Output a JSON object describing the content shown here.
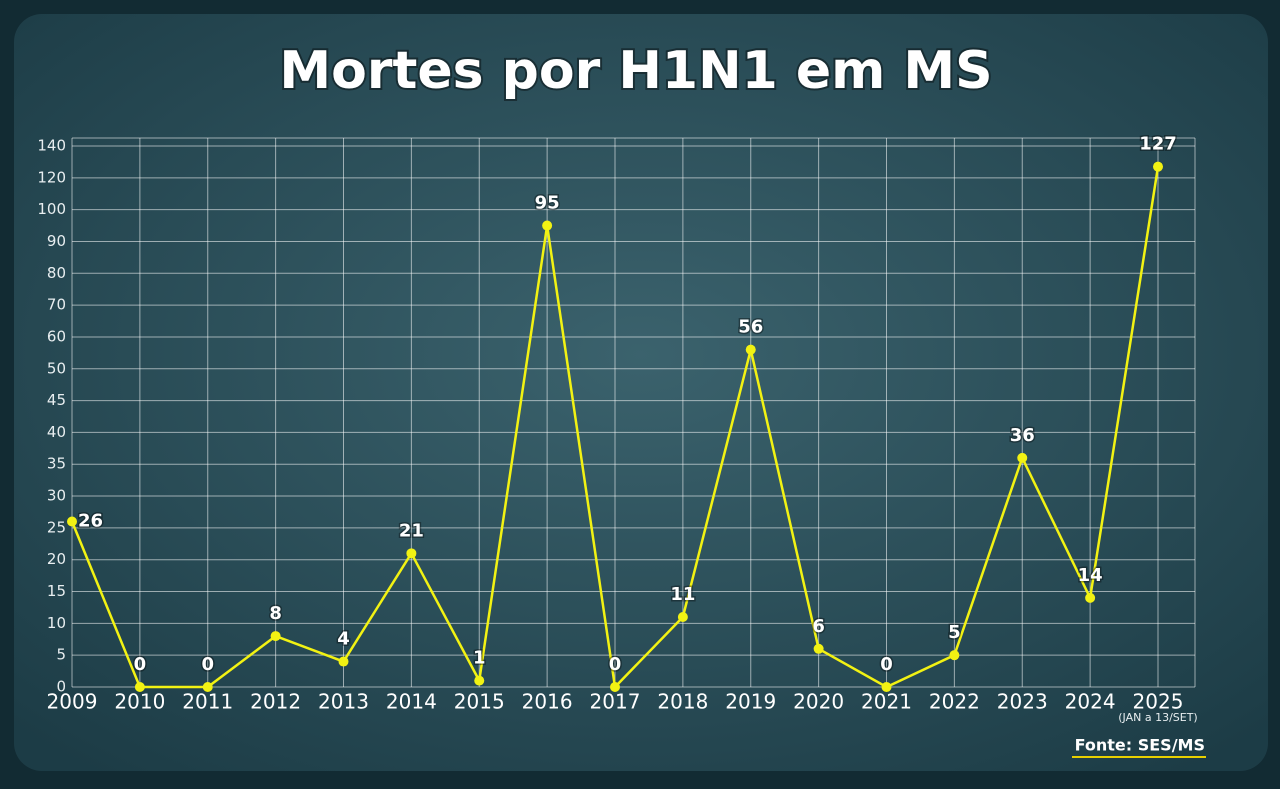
{
  "chart_data": {
    "type": "line",
    "title": "Mortes por H1N1 em MS",
    "categories": [
      "2009",
      "2010",
      "2011",
      "2012",
      "2013",
      "2014",
      "2015",
      "2016",
      "2017",
      "2018",
      "2019",
      "2020",
      "2021",
      "2022",
      "2023",
      "2024",
      "2025"
    ],
    "x_note": "(JAN a 13/SET)",
    "values": [
      26,
      0,
      0,
      8,
      4,
      21,
      1,
      95,
      0,
      11,
      56,
      6,
      0,
      5,
      36,
      14,
      127
    ],
    "color": "#f2f213",
    "ylim": [
      0,
      140
    ],
    "yticks": [
      0,
      5,
      10,
      15,
      20,
      25,
      30,
      35,
      40,
      45,
      50,
      60,
      70,
      80,
      90,
      100,
      120,
      140
    ],
    "grid": true,
    "source": "Fonte: SES/MS"
  }
}
